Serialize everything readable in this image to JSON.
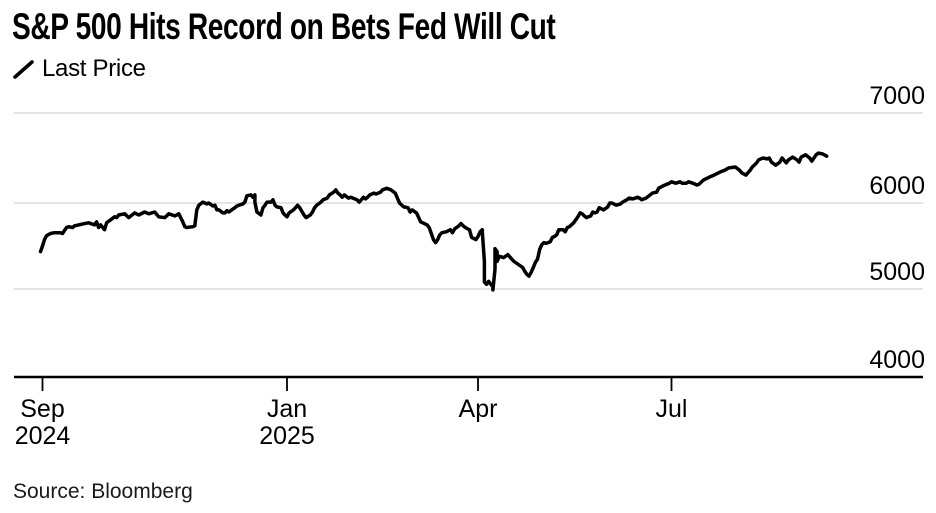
{
  "header": {
    "title": "S&P 500 Hits Record on Bets Fed Will Cut"
  },
  "legend": {
    "label": "Last Price"
  },
  "footer": {
    "source": "Source: Bloomberg"
  },
  "colors": {
    "background": "#ffffff",
    "line": "#000000",
    "grid": "#dcdcdc",
    "axis": "#000000",
    "tick": "#000000",
    "text": "#000000"
  },
  "chart_data": {
    "type": "line",
    "title": "S&P 500 Hits Record on Bets Fed Will Cut",
    "xlabel": "",
    "ylabel": "",
    "ylim": [
      4000,
      7000
    ],
    "grid": "horizontal",
    "legend_position": "top-left",
    "x_unit": "trading days offset from Sep 2024 tick",
    "x_ticks": [
      {
        "day": 0,
        "label": "Sep",
        "sublabel": "2024"
      },
      {
        "day": 122,
        "label": "Jan",
        "sublabel": "2025"
      },
      {
        "day": 212,
        "label": "Apr",
        "sublabel": ""
      },
      {
        "day": 303,
        "label": "Jul",
        "sublabel": ""
      }
    ],
    "y_ticks": [
      7000,
      6000,
      5000,
      4000
    ],
    "series": [
      {
        "name": "Last Price",
        "points": [
          [
            -1,
            5435
          ],
          [
            0,
            5500
          ],
          [
            1,
            5575
          ],
          [
            2,
            5620
          ],
          [
            4,
            5645
          ],
          [
            6,
            5655
          ],
          [
            9,
            5655
          ],
          [
            10,
            5645
          ],
          [
            12,
            5715
          ],
          [
            13,
            5725
          ],
          [
            15,
            5715
          ],
          [
            16,
            5735
          ],
          [
            18,
            5745
          ],
          [
            21,
            5760
          ],
          [
            23,
            5770
          ],
          [
            26,
            5745
          ],
          [
            27,
            5780
          ],
          [
            28,
            5715
          ],
          [
            29,
            5745
          ],
          [
            31,
            5690
          ],
          [
            32,
            5770
          ],
          [
            34,
            5805
          ],
          [
            36,
            5840
          ],
          [
            37,
            5830
          ],
          [
            38,
            5860
          ],
          [
            41,
            5875
          ],
          [
            43,
            5830
          ],
          [
            46,
            5885
          ],
          [
            48,
            5860
          ],
          [
            51,
            5895
          ],
          [
            53,
            5875
          ],
          [
            56,
            5895
          ],
          [
            58,
            5840
          ],
          [
            61,
            5830
          ],
          [
            63,
            5875
          ],
          [
            66,
            5850
          ],
          [
            68,
            5875
          ],
          [
            70,
            5780
          ],
          [
            71,
            5725
          ],
          [
            72,
            5715
          ],
          [
            75,
            5725
          ],
          [
            76,
            5735
          ],
          [
            77,
            5920
          ],
          [
            78,
            5975
          ],
          [
            80,
            6010
          ],
          [
            82,
            5990
          ],
          [
            83,
            6000
          ],
          [
            85,
            5965
          ],
          [
            86,
            5975
          ],
          [
            87,
            5920
          ],
          [
            88,
            5920
          ],
          [
            90,
            5885
          ],
          [
            91,
            5885
          ],
          [
            92,
            5910
          ],
          [
            93,
            5895
          ],
          [
            95,
            5930
          ],
          [
            96,
            5945
          ],
          [
            97,
            5965
          ],
          [
            98,
            5975
          ],
          [
            100,
            5990
          ],
          [
            101,
            6010
          ],
          [
            102,
            6080
          ],
          [
            104,
            6090
          ],
          [
            105,
            6065
          ],
          [
            106,
            6090
          ],
          [
            106,
            6010
          ],
          [
            107,
            5895
          ],
          [
            109,
            5860
          ],
          [
            110,
            5945
          ],
          [
            111,
            5975
          ],
          [
            112,
            6010
          ],
          [
            114,
            6010
          ],
          [
            115,
            6035
          ],
          [
            116,
            5975
          ],
          [
            117,
            5955
          ],
          [
            119,
            5945
          ],
          [
            120,
            5885
          ],
          [
            121,
            5860
          ],
          [
            122,
            5840
          ],
          [
            123,
            5885
          ],
          [
            125,
            5920
          ],
          [
            126,
            5945
          ],
          [
            127,
            5975
          ],
          [
            128,
            5945
          ],
          [
            130,
            5860
          ],
          [
            131,
            5830
          ],
          [
            133,
            5860
          ],
          [
            134,
            5895
          ],
          [
            135,
            5945
          ],
          [
            136,
            5975
          ],
          [
            138,
            6010
          ],
          [
            139,
            6035
          ],
          [
            141,
            6055
          ],
          [
            142,
            6090
          ],
          [
            144,
            6120
          ],
          [
            145,
            6145
          ],
          [
            146,
            6110
          ],
          [
            147,
            6090
          ],
          [
            148,
            6065
          ],
          [
            149,
            6090
          ],
          [
            151,
            6055
          ],
          [
            152,
            6065
          ],
          [
            153,
            6055
          ],
          [
            155,
            6035
          ],
          [
            156,
            6010
          ],
          [
            157,
            6035
          ],
          [
            158,
            6065
          ],
          [
            159,
            6045
          ],
          [
            160,
            6065
          ],
          [
            161,
            6090
          ],
          [
            163,
            6110
          ],
          [
            164,
            6100
          ],
          [
            166,
            6120
          ],
          [
            167,
            6145
          ],
          [
            169,
            6165
          ],
          [
            171,
            6145
          ],
          [
            173,
            6110
          ],
          [
            174,
            6055
          ],
          [
            175,
            6000
          ],
          [
            177,
            5955
          ],
          [
            179,
            5945
          ],
          [
            180,
            5895
          ],
          [
            181,
            5920
          ],
          [
            183,
            5885
          ],
          [
            185,
            5780
          ],
          [
            186,
            5770
          ],
          [
            188,
            5745
          ],
          [
            189,
            5715
          ],
          [
            191,
            5575
          ],
          [
            192,
            5540
          ],
          [
            193,
            5575
          ],
          [
            194,
            5630
          ],
          [
            195,
            5655
          ],
          [
            197,
            5665
          ],
          [
            199,
            5690
          ],
          [
            200,
            5655
          ],
          [
            201,
            5700
          ],
          [
            203,
            5735
          ],
          [
            204,
            5760
          ],
          [
            205,
            5735
          ],
          [
            206,
            5715
          ],
          [
            207,
            5700
          ],
          [
            208,
            5690
          ],
          [
            209,
            5600
          ],
          [
            211,
            5575
          ],
          [
            212,
            5610
          ],
          [
            213,
            5665
          ],
          [
            214,
            5690
          ],
          [
            214,
            5665
          ],
          [
            215,
            5320
          ],
          [
            215,
            5080
          ],
          [
            216,
            5055
          ],
          [
            217,
            5090
          ],
          [
            218,
            5055
          ],
          [
            219,
            5025
          ],
          [
            219,
            4990
          ],
          [
            220,
            5230
          ],
          [
            220,
            5470
          ],
          [
            221,
            5435
          ],
          [
            221,
            5320
          ],
          [
            222,
            5380
          ],
          [
            224,
            5365
          ],
          [
            225,
            5380
          ],
          [
            226,
            5400
          ],
          [
            228,
            5345
          ],
          [
            229,
            5320
          ],
          [
            231,
            5285
          ],
          [
            233,
            5250
          ],
          [
            234,
            5205
          ],
          [
            235,
            5170
          ],
          [
            236,
            5150
          ],
          [
            237,
            5195
          ],
          [
            238,
            5250
          ],
          [
            239,
            5310
          ],
          [
            240,
            5345
          ],
          [
            241,
            5460
          ],
          [
            242,
            5515
          ],
          [
            243,
            5540
          ],
          [
            244,
            5530
          ],
          [
            246,
            5550
          ],
          [
            247,
            5600
          ],
          [
            248,
            5610
          ],
          [
            249,
            5630
          ],
          [
            250,
            5690
          ],
          [
            252,
            5690
          ],
          [
            253,
            5665
          ],
          [
            254,
            5715
          ],
          [
            255,
            5725
          ],
          [
            257,
            5770
          ],
          [
            258,
            5805
          ],
          [
            259,
            5840
          ],
          [
            260,
            5885
          ],
          [
            261,
            5875
          ],
          [
            262,
            5850
          ],
          [
            263,
            5830
          ],
          [
            265,
            5850
          ],
          [
            266,
            5895
          ],
          [
            267,
            5885
          ],
          [
            268,
            5895
          ],
          [
            269,
            5945
          ],
          [
            271,
            5920
          ],
          [
            273,
            5955
          ],
          [
            274,
            6000
          ],
          [
            275,
            6000
          ],
          [
            277,
            5975
          ],
          [
            279,
            5990
          ],
          [
            280,
            6010
          ],
          [
            282,
            6035
          ],
          [
            283,
            6055
          ],
          [
            285,
            6045
          ],
          [
            287,
            6065
          ],
          [
            288,
            6055
          ],
          [
            289,
            6035
          ],
          [
            291,
            6055
          ],
          [
            293,
            6090
          ],
          [
            294,
            6110
          ],
          [
            296,
            6120
          ],
          [
            297,
            6165
          ],
          [
            299,
            6190
          ],
          [
            301,
            6210
          ],
          [
            302,
            6220
          ],
          [
            303,
            6235
          ],
          [
            305,
            6220
          ],
          [
            307,
            6235
          ],
          [
            308,
            6220
          ],
          [
            310,
            6220
          ],
          [
            311,
            6235
          ],
          [
            313,
            6220
          ],
          [
            315,
            6200
          ],
          [
            316,
            6210
          ],
          [
            318,
            6255
          ],
          [
            321,
            6290
          ],
          [
            323,
            6310
          ],
          [
            326,
            6345
          ],
          [
            328,
            6365
          ],
          [
            330,
            6390
          ],
          [
            333,
            6400
          ],
          [
            335,
            6365
          ],
          [
            336,
            6335
          ],
          [
            338,
            6310
          ],
          [
            340,
            6365
          ],
          [
            341,
            6400
          ],
          [
            343,
            6445
          ],
          [
            344,
            6480
          ],
          [
            346,
            6500
          ],
          [
            348,
            6490
          ],
          [
            349,
            6500
          ],
          [
            350,
            6455
          ],
          [
            352,
            6420
          ],
          [
            354,
            6455
          ],
          [
            355,
            6500
          ],
          [
            357,
            6445
          ],
          [
            358,
            6480
          ],
          [
            360,
            6510
          ],
          [
            362,
            6480
          ],
          [
            363,
            6455
          ],
          [
            364,
            6510
          ],
          [
            366,
            6535
          ],
          [
            368,
            6500
          ],
          [
            369,
            6465
          ],
          [
            371,
            6535
          ],
          [
            372,
            6555
          ],
          [
            374,
            6545
          ],
          [
            376,
            6520
          ]
        ]
      }
    ]
  }
}
